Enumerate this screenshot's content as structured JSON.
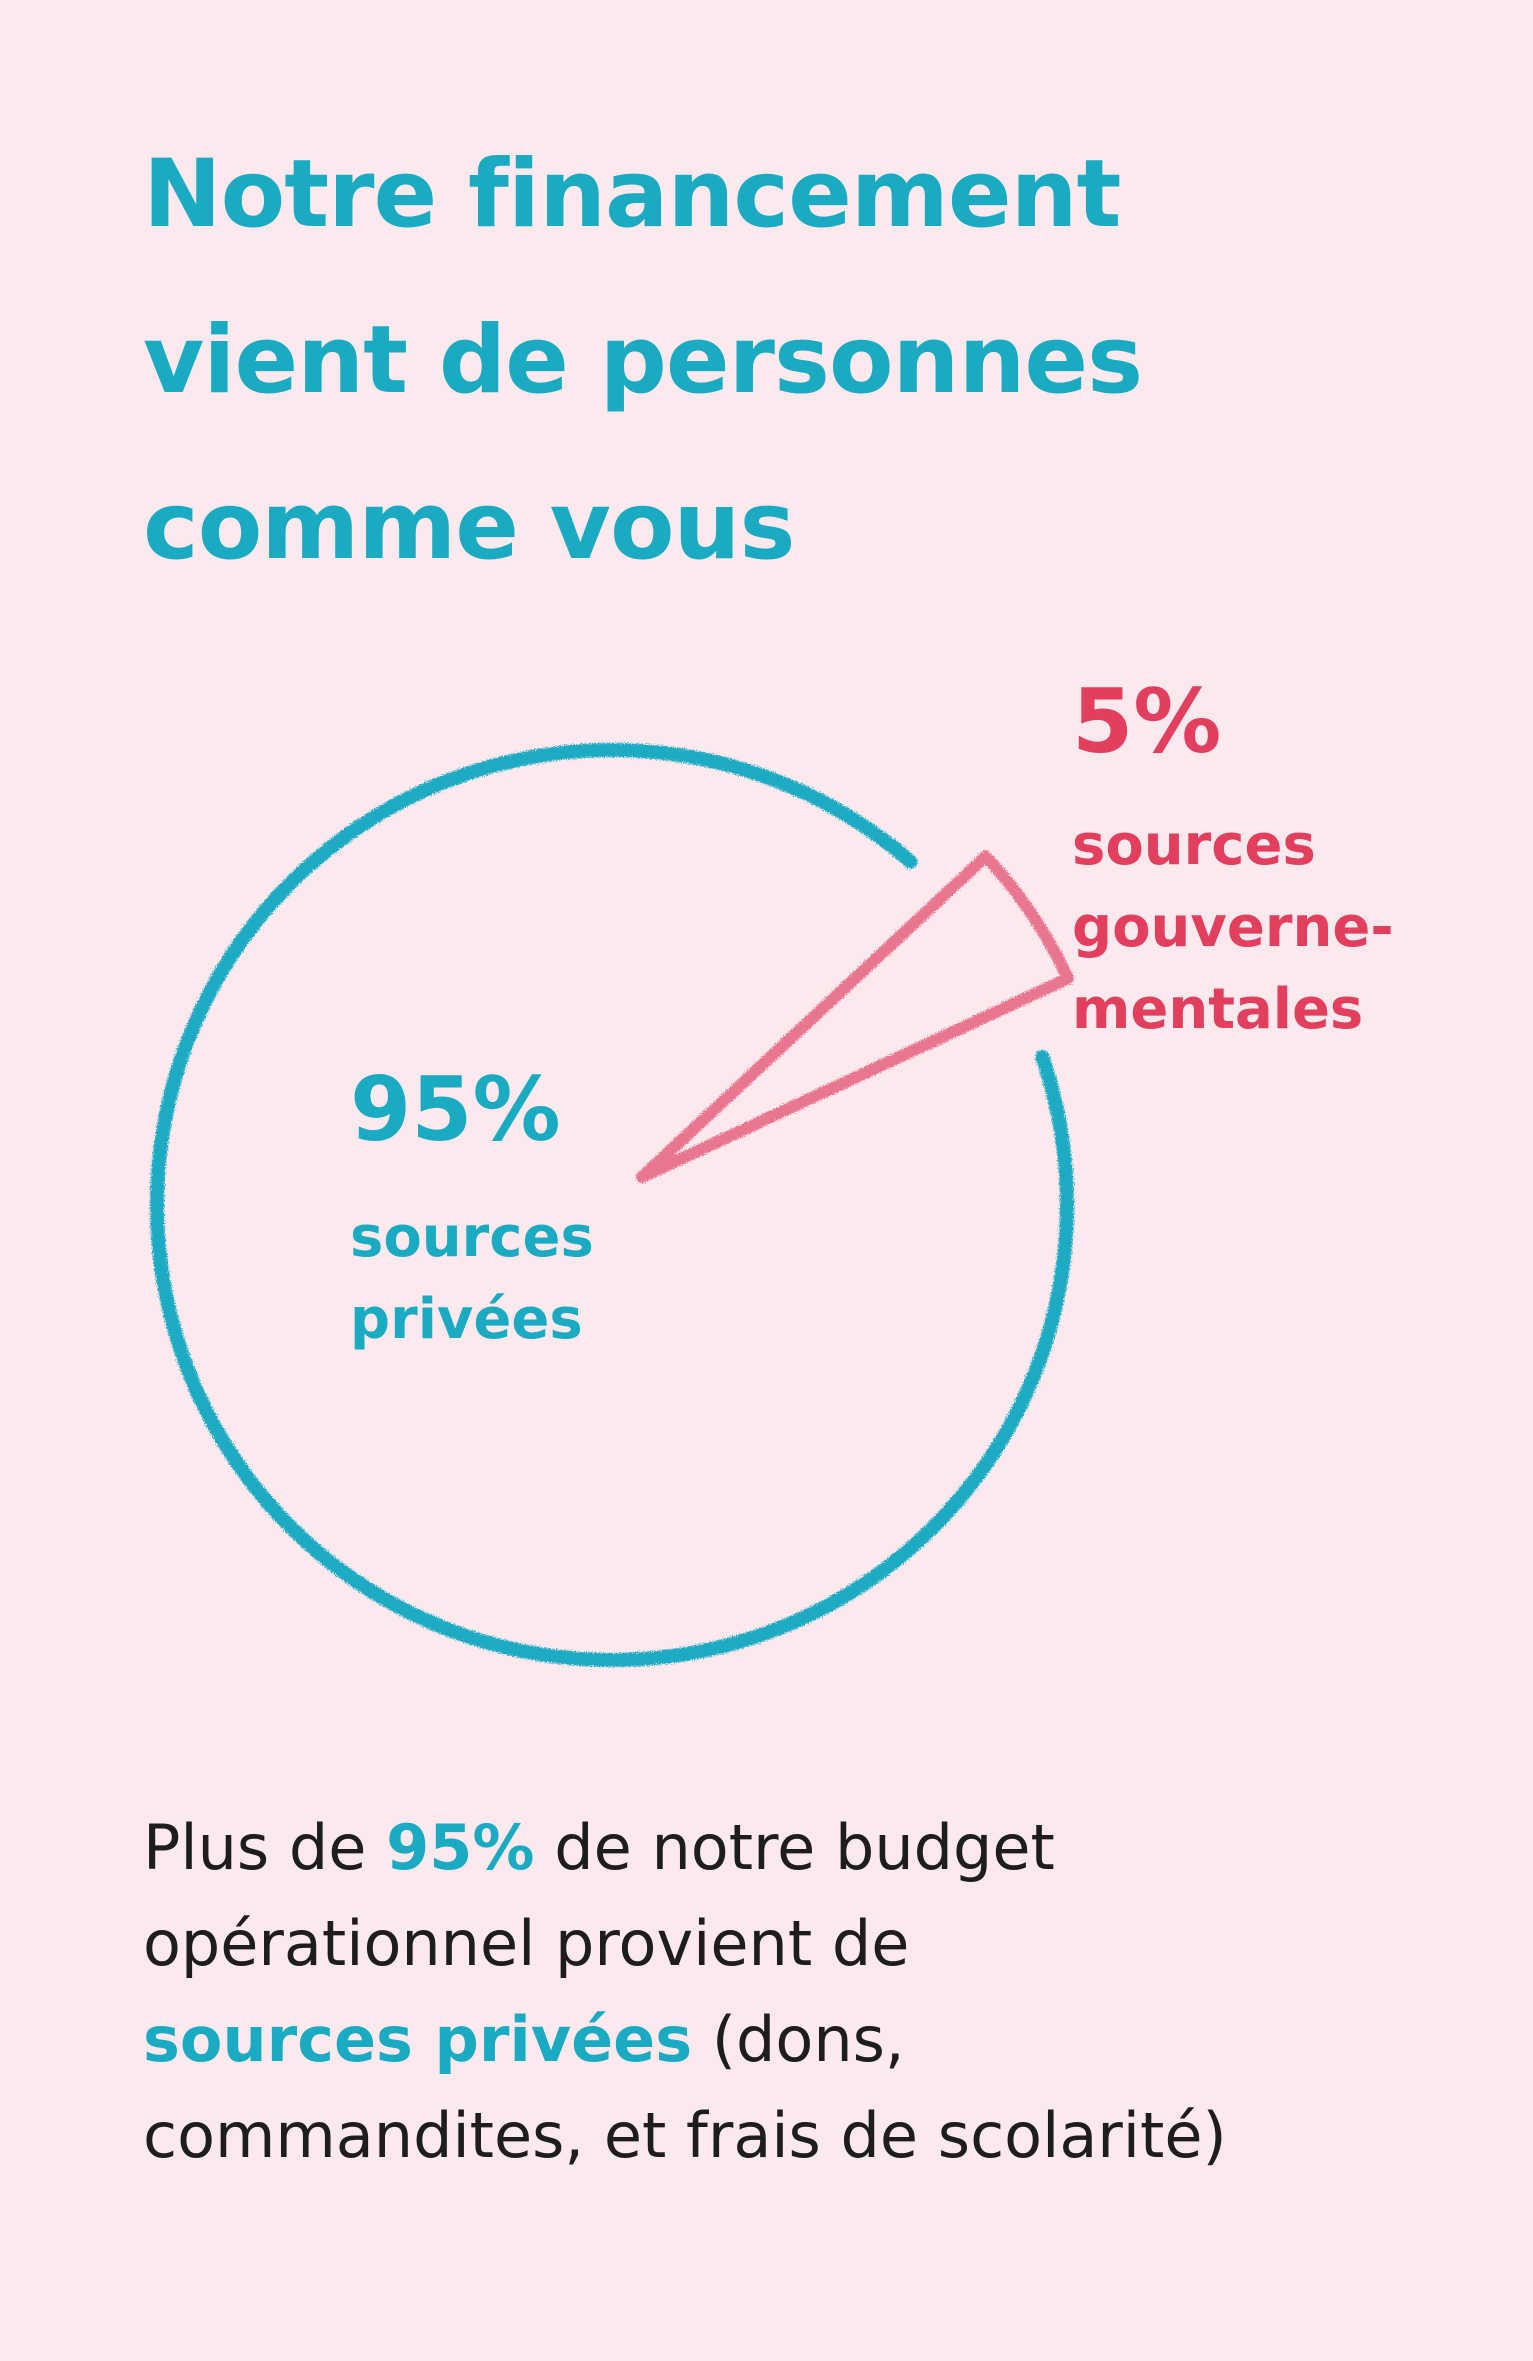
{
  "headline": {
    "line1": "Notre financement",
    "line2": "vient de personnes",
    "line3": "comme vous"
  },
  "chart_data": {
    "type": "pie",
    "slices": [
      {
        "value": 95,
        "label": "95%",
        "text_lines": [
          "sources",
          "privées"
        ],
        "color": "#1aabc2"
      },
      {
        "value": 5,
        "label": "5%",
        "text_lines": [
          "sources",
          "gouverne-",
          "mentales"
        ],
        "color": "#e9768f",
        "label_color": "#e23f5e"
      }
    ]
  },
  "body": {
    "l1_a": "Plus de ",
    "l1_b": "95%",
    "l1_c": " de notre budget",
    "l2": "opérationnel provient de",
    "l3_a": "sources privées",
    "l3_b": " (dons,",
    "l4": "commandites, et frais de scolarité)"
  },
  "colors": {
    "background": "#fce9ee",
    "accent_teal": "#1aabc2",
    "accent_pink": "#e23f5e",
    "text": "#1d1d1b"
  }
}
